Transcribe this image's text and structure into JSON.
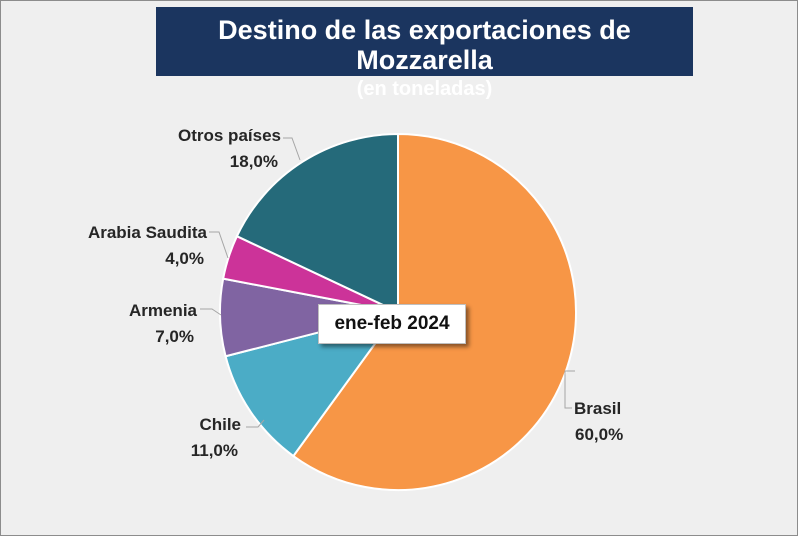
{
  "title": "Destino de las exportaciones de Mozzarella",
  "subtitle": "(en toneladas)",
  "center_label": "ene-feb 2024",
  "chart_data": {
    "type": "pie",
    "title": "Destino de las exportaciones de Mozzarella",
    "subtitle": "(en toneladas)",
    "annotation": "ene-feb 2024",
    "labels": [
      "Brasil",
      "Chile",
      "Armenia",
      "Arabia Saudita",
      "Otros países"
    ],
    "values": [
      60.0,
      11.0,
      7.0,
      4.0,
      18.0
    ],
    "value_labels": [
      "60,0%",
      "11,0%",
      "7,0%",
      "4,0%",
      "18,0%"
    ],
    "colors": [
      "#f79646",
      "#4bacc6",
      "#8064a2",
      "#cc3399",
      "#256a7a"
    ]
  }
}
